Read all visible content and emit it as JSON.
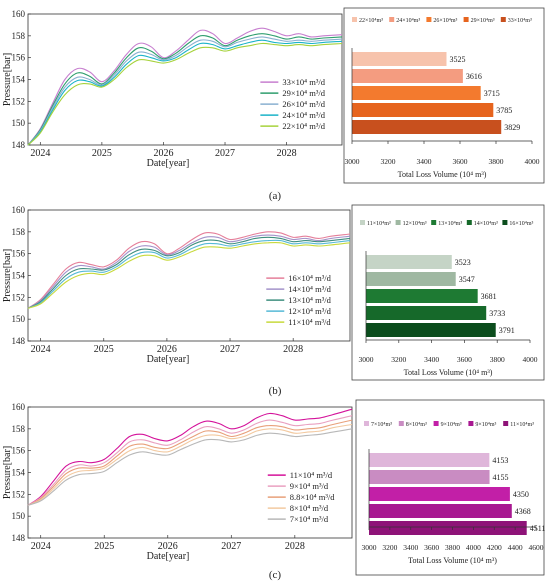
{
  "panel_labels": [
    "(a)",
    "(b)",
    "(c)"
  ],
  "chart_data": [
    {
      "type": "line",
      "panel": "(a)",
      "xlabel": "Date[year]",
      "ylabel": "Pressure[bar]",
      "xlim": [
        2023.8,
        2028.9
      ],
      "ylim": [
        148,
        160
      ],
      "xticks": [
        "2024",
        "2025",
        "2026",
        "2027",
        "2028"
      ],
      "yticks": [
        "148",
        "150",
        "152",
        "154",
        "156",
        "158",
        "160"
      ],
      "x": [
        2023.8,
        2024.0,
        2024.2,
        2024.4,
        2024.6,
        2024.8,
        2025.0,
        2025.2,
        2025.4,
        2025.6,
        2025.8,
        2026.0,
        2026.2,
        2026.4,
        2026.6,
        2026.8,
        2027.0,
        2027.2,
        2027.4,
        2027.6,
        2027.8,
        2028.0,
        2028.2,
        2028.4,
        2028.6,
        2028.9
      ],
      "series": [
        {
          "name": "33×10⁴ m³/d",
          "color": "#c77fcf",
          "values": [
            148.0,
            149.5,
            151.8,
            154.0,
            155.0,
            154.7,
            153.8,
            154.8,
            156.3,
            157.3,
            157.0,
            156.0,
            156.6,
            157.6,
            158.5,
            158.2,
            157.3,
            157.8,
            158.4,
            158.7,
            158.4,
            158.0,
            158.2,
            157.9,
            158.0,
            158.1
          ]
        },
        {
          "name": "29×10⁴ m³/d",
          "color": "#2f9e6e",
          "values": [
            148.0,
            149.4,
            151.6,
            153.6,
            154.6,
            154.3,
            153.6,
            154.6,
            156.0,
            156.9,
            156.6,
            155.9,
            156.4,
            157.3,
            158.0,
            157.8,
            157.1,
            157.6,
            158.0,
            158.2,
            158.0,
            157.7,
            157.9,
            157.7,
            157.8,
            157.9
          ]
        },
        {
          "name": "26×10⁴ m³/d",
          "color": "#8ab0d0",
          "values": [
            148.0,
            149.3,
            151.4,
            153.3,
            154.2,
            154.0,
            153.5,
            154.4,
            155.7,
            156.5,
            156.3,
            155.8,
            156.2,
            157.0,
            157.6,
            157.5,
            157.0,
            157.4,
            157.7,
            157.9,
            157.7,
            157.5,
            157.6,
            157.5,
            157.6,
            157.7
          ]
        },
        {
          "name": "24×10⁴ m³/d",
          "color": "#1bb3c8",
          "values": [
            148.0,
            149.2,
            151.2,
            153.0,
            153.9,
            153.8,
            153.4,
            154.2,
            155.4,
            156.2,
            156.0,
            155.7,
            156.0,
            156.7,
            157.3,
            157.2,
            156.8,
            157.1,
            157.4,
            157.6,
            157.4,
            157.3,
            157.4,
            157.3,
            157.4,
            157.5
          ]
        },
        {
          "name": "22×10⁴ m³/d",
          "color": "#a6d23c",
          "values": [
            148.0,
            149.1,
            151.0,
            152.6,
            153.5,
            153.6,
            153.3,
            154.0,
            155.1,
            155.8,
            155.7,
            155.5,
            155.8,
            156.4,
            156.9,
            156.9,
            156.6,
            156.9,
            157.1,
            157.3,
            157.2,
            157.1,
            157.2,
            157.1,
            157.2,
            157.3
          ]
        }
      ]
    },
    {
      "type": "bar",
      "orientation": "horizontal",
      "panel": "(a)",
      "xlabel": "Total Loss Volume (10⁴ m³)",
      "xlim": [
        3000,
        4000
      ],
      "xticks": [
        "3000",
        "3200",
        "3400",
        "3600",
        "3800",
        "4000"
      ],
      "legend": [
        "22×10⁴m³",
        "24×10⁴m³",
        "26×10⁴m³",
        "29×10⁴m³",
        "33×10⁴m³"
      ],
      "colors": [
        "#f7c3ac",
        "#f49c80",
        "#f37a2e",
        "#e6641e",
        "#c8501e"
      ],
      "values": [
        3525,
        3616,
        3715,
        3785,
        3829
      ],
      "value_labels": [
        "3525",
        "3616",
        "3715",
        "3785",
        "3829"
      ]
    },
    {
      "type": "line",
      "panel": "(b)",
      "xlabel": "Date[year]",
      "ylabel": "Pressure[bar]",
      "xlim": [
        2023.8,
        2028.9
      ],
      "ylim": [
        148,
        160
      ],
      "xticks": [
        "2024",
        "2025",
        "2026",
        "2027",
        "2028"
      ],
      "yticks": [
        "148",
        "150",
        "152",
        "154",
        "156",
        "158",
        "160"
      ],
      "x": [
        2023.8,
        2024.0,
        2024.2,
        2024.4,
        2024.6,
        2024.8,
        2025.0,
        2025.2,
        2025.4,
        2025.6,
        2025.8,
        2026.0,
        2026.2,
        2026.4,
        2026.6,
        2026.8,
        2027.0,
        2027.2,
        2027.4,
        2027.6,
        2027.8,
        2028.0,
        2028.2,
        2028.4,
        2028.6,
        2028.9
      ],
      "series": [
        {
          "name": "16×10⁴ m³/d",
          "color": "#e57f9a",
          "values": [
            151.0,
            151.8,
            153.2,
            154.6,
            155.2,
            155.0,
            154.8,
            155.4,
            156.5,
            157.1,
            156.9,
            156.0,
            156.5,
            157.3,
            157.9,
            157.8,
            157.3,
            157.5,
            157.8,
            158.0,
            157.9,
            157.5,
            157.6,
            157.4,
            157.6,
            157.8
          ]
        },
        {
          "name": "14×10⁴ m³/d",
          "color": "#a392c9",
          "values": [
            151.0,
            151.7,
            153.0,
            154.3,
            154.9,
            154.8,
            154.6,
            155.2,
            156.2,
            156.7,
            156.6,
            155.9,
            156.3,
            157.0,
            157.5,
            157.5,
            157.1,
            157.3,
            157.6,
            157.7,
            157.6,
            157.3,
            157.4,
            157.2,
            157.4,
            157.6
          ]
        },
        {
          "name": "13×10⁴ m³/d",
          "color": "#3f8f7f",
          "values": [
            151.0,
            151.6,
            152.8,
            154.0,
            154.6,
            154.6,
            154.5,
            155.0,
            155.9,
            156.4,
            156.3,
            155.8,
            156.1,
            156.8,
            157.2,
            157.2,
            156.9,
            157.1,
            157.4,
            157.5,
            157.4,
            157.1,
            157.2,
            157.1,
            157.2,
            157.4
          ]
        },
        {
          "name": "12×10⁴ m³/d",
          "color": "#56b9d6",
          "values": [
            151.0,
            151.5,
            152.6,
            153.7,
            154.3,
            154.4,
            154.3,
            154.8,
            155.6,
            156.1,
            156.1,
            155.6,
            155.9,
            156.5,
            156.9,
            156.9,
            156.7,
            156.9,
            157.1,
            157.2,
            157.2,
            156.9,
            157.0,
            156.9,
            157.0,
            157.2
          ]
        },
        {
          "name": "11×10⁴ m³/d",
          "color": "#c7d93c",
          "values": [
            151.0,
            151.4,
            152.4,
            153.4,
            154.0,
            154.2,
            154.1,
            154.6,
            155.3,
            155.8,
            155.8,
            155.4,
            155.7,
            156.2,
            156.6,
            156.6,
            156.5,
            156.7,
            156.9,
            157.0,
            157.0,
            156.7,
            156.8,
            156.7,
            156.8,
            157.0
          ]
        }
      ]
    },
    {
      "type": "bar",
      "orientation": "horizontal",
      "panel": "(b)",
      "xlabel": "Total Loss Volume (10⁴ m³)",
      "xlim": [
        3000,
        4000
      ],
      "xticks": [
        "3000",
        "3200",
        "3400",
        "3600",
        "3800",
        "4000"
      ],
      "legend": [
        "11×10⁴m³",
        "12×10⁴m³",
        "13×10⁴m³",
        "14×10⁴m³",
        "16×10⁴m³"
      ],
      "colors": [
        "#c5d4c6",
        "#9fb8a2",
        "#1e7a33",
        "#16692a",
        "#0b4d1d"
      ],
      "values": [
        3523,
        3547,
        3681,
        3733,
        3791
      ],
      "value_labels": [
        "3523",
        "3547",
        "3681",
        "3733",
        "3791"
      ]
    },
    {
      "type": "line",
      "panel": "(c)",
      "xlabel": "Date[year]",
      "ylabel": "Pressure[bar]",
      "xlim": [
        2023.8,
        2028.9
      ],
      "ylim": [
        148,
        160
      ],
      "xticks": [
        "2024",
        "2025",
        "2026",
        "2027",
        "2028"
      ],
      "yticks": [
        "148",
        "150",
        "152",
        "154",
        "156",
        "158",
        "160"
      ],
      "x": [
        2023.8,
        2024.0,
        2024.2,
        2024.4,
        2024.6,
        2024.8,
        2025.0,
        2025.2,
        2025.4,
        2025.6,
        2025.8,
        2026.0,
        2026.2,
        2026.4,
        2026.6,
        2026.8,
        2027.0,
        2027.2,
        2027.4,
        2027.6,
        2027.8,
        2028.0,
        2028.2,
        2028.4,
        2028.6,
        2028.9
      ],
      "series": [
        {
          "name": "11×10⁴ m³/d",
          "color": "#d4129a",
          "values": [
            151.0,
            151.8,
            153.2,
            154.6,
            155.0,
            154.9,
            155.2,
            156.2,
            157.3,
            157.5,
            157.1,
            156.9,
            157.4,
            158.2,
            158.7,
            158.5,
            158.0,
            158.3,
            159.0,
            159.4,
            159.2,
            158.8,
            158.9,
            159.0,
            159.3,
            159.8
          ]
        },
        {
          "name": "9×10⁴ m³/d",
          "color": "#e9a0c0",
          "values": [
            151.0,
            151.7,
            152.9,
            154.2,
            154.7,
            154.6,
            154.9,
            155.8,
            156.8,
            157.0,
            156.7,
            156.5,
            157.0,
            157.7,
            158.2,
            158.0,
            157.6,
            157.9,
            158.5,
            158.8,
            158.6,
            158.3,
            158.4,
            158.5,
            158.8,
            159.2
          ]
        },
        {
          "name": "8.8×10⁴ m³/d",
          "color": "#e8a07a",
          "values": [
            151.0,
            151.6,
            152.7,
            153.9,
            154.4,
            154.4,
            154.6,
            155.5,
            156.4,
            156.6,
            156.3,
            156.2,
            156.7,
            157.3,
            157.8,
            157.7,
            157.3,
            157.6,
            158.1,
            158.3,
            158.2,
            157.9,
            158.0,
            158.1,
            158.4,
            158.8
          ]
        },
        {
          "name": "8×10⁴ m³/d",
          "color": "#f2c9a0",
          "values": [
            151.0,
            151.5,
            152.5,
            153.6,
            154.1,
            154.2,
            154.4,
            155.2,
            156.0,
            156.3,
            156.0,
            155.9,
            156.4,
            157.0,
            157.4,
            157.4,
            157.1,
            157.3,
            157.8,
            158.0,
            157.9,
            157.6,
            157.7,
            157.8,
            158.1,
            158.4
          ]
        },
        {
          "name": "7×10⁴ m³/d",
          "color": "#b8b8b8",
          "values": [
            151.0,
            151.4,
            152.3,
            153.3,
            153.8,
            153.9,
            154.1,
            154.9,
            155.6,
            155.9,
            155.7,
            155.6,
            156.1,
            156.6,
            157.0,
            157.0,
            156.8,
            157.0,
            157.4,
            157.6,
            157.5,
            157.3,
            157.4,
            157.5,
            157.7,
            158.0
          ]
        }
      ]
    },
    {
      "type": "bar",
      "orientation": "horizontal",
      "panel": "(c)",
      "xlabel": "Total Loss Volume (10⁴ m³)",
      "xlim": [
        3000,
        4600
      ],
      "xticks": [
        "3000",
        "3200",
        "3400",
        "3600",
        "3800",
        "4000",
        "4200",
        "4400",
        "4600"
      ],
      "legend": [
        "7×10⁴m³",
        "8×10⁴m³",
        "9×10⁴m³",
        "9×10⁴m³",
        "11×10⁴m³"
      ],
      "colors": [
        "#dfb6da",
        "#c98cc2",
        "#c21fa7",
        "#a81891",
        "#8e1378"
      ],
      "values": [
        4153,
        4155,
        4350,
        4368,
        4511
      ],
      "value_labels": [
        "4153",
        "4155",
        "4350",
        "4368",
        "4511"
      ]
    }
  ]
}
